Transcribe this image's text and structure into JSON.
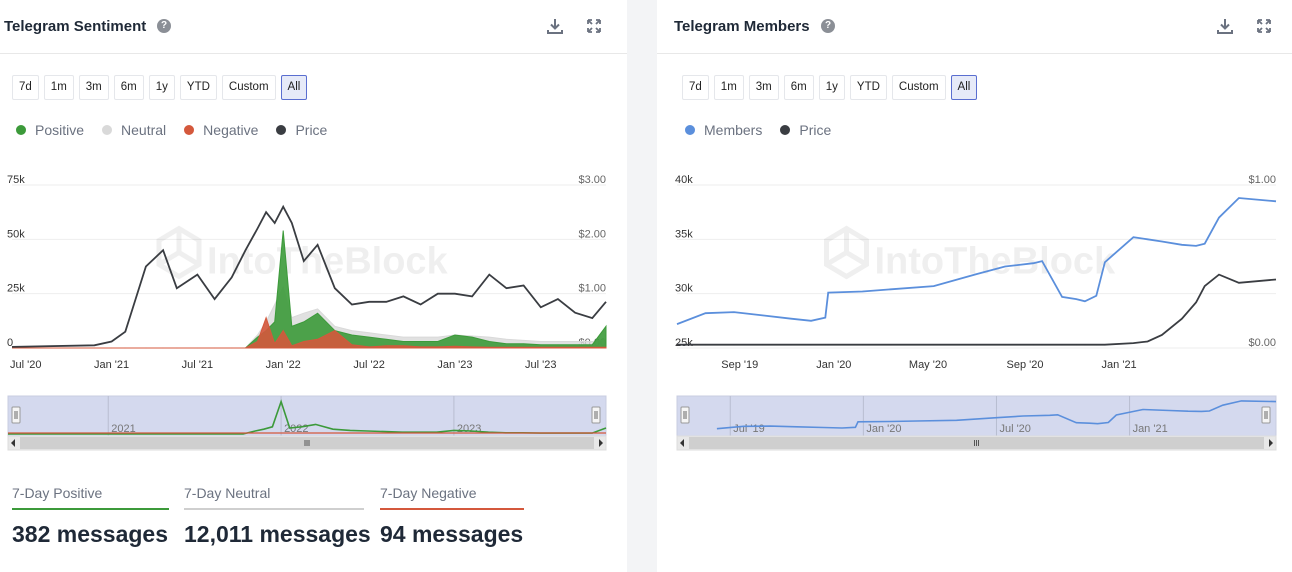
{
  "panels": [
    {
      "title": "Telegram Sentiment",
      "ranges": [
        "7d",
        "1m",
        "3m",
        "6m",
        "1y",
        "YTD",
        "Custom",
        "All"
      ],
      "active_range": "All",
      "legend": [
        {
          "label": "Positive",
          "color": "#3c9a3a"
        },
        {
          "label": "Neutral",
          "color": "#d9d9d9"
        },
        {
          "label": "Negative",
          "color": "#d4583c"
        },
        {
          "label": "Price",
          "color": "#3a3d42"
        }
      ]
    },
    {
      "title": "Telegram Members",
      "ranges": [
        "7d",
        "1m",
        "3m",
        "6m",
        "1y",
        "YTD",
        "Custom",
        "All"
      ],
      "active_range": "All",
      "legend": [
        {
          "label": "Members",
          "color": "#5b8fdc"
        },
        {
          "label": "Price",
          "color": "#3a3d42"
        }
      ]
    }
  ],
  "stats": [
    {
      "label": "7-Day Positive",
      "value": "382 messages",
      "color": "#3c9a3a"
    },
    {
      "label": "7-Day Neutral",
      "value": "12,011 messages",
      "color": "#cfcfcf"
    },
    {
      "label": "7-Day Negative",
      "value": "94 messages",
      "color": "#d4583c"
    }
  ],
  "watermark": "IntoTheBlock",
  "icons": [
    "help-icon",
    "download-icon",
    "expand-icon"
  ],
  "chart_data": [
    {
      "type": "area",
      "x_ticks": [
        "Jul '20",
        "Jan '21",
        "Jul '21",
        "Jan '22",
        "Jul '22",
        "Jan '23",
        "Jul '23"
      ],
      "y_left_ticks": [
        "0",
        "25k",
        "50k",
        "75k"
      ],
      "y_right_ticks": [
        "$0.00",
        "$1.00",
        "$2.00",
        "$3.00"
      ],
      "ylim_left": [
        0,
        75000
      ],
      "ylim_right": [
        0,
        3.0
      ],
      "navigator_ticks": [
        "2021",
        "2022",
        "2023"
      ],
      "x": [
        2020.42,
        2020.9,
        2021.0,
        2021.08,
        2021.2,
        2021.3,
        2021.38,
        2021.5,
        2021.6,
        2021.7,
        2021.78,
        2021.85,
        2021.9,
        2021.95,
        2022.0,
        2022.05,
        2022.12,
        2022.2,
        2022.3,
        2022.4,
        2022.5,
        2022.6,
        2022.7,
        2022.8,
        2022.9,
        2023.0,
        2023.1,
        2023.2,
        2023.3,
        2023.4,
        2023.5,
        2023.6,
        2023.7,
        2023.8,
        2023.88
      ],
      "series": [
        {
          "name": "Positive",
          "values": [
            0,
            0,
            0,
            0,
            0,
            0,
            0,
            0,
            0,
            0,
            0,
            5000,
            8000,
            12000,
            54000,
            10000,
            12000,
            16000,
            8000,
            6000,
            5000,
            4000,
            3000,
            3000,
            3000,
            6000,
            5000,
            3000,
            2000,
            2000,
            1500,
            1500,
            1500,
            1500,
            10000
          ]
        },
        {
          "name": "Neutral",
          "values": [
            0,
            0,
            0,
            0,
            0,
            0,
            0,
            0,
            0,
            0,
            0,
            6000,
            12000,
            20000,
            28000,
            14000,
            16000,
            18000,
            10000,
            8000,
            7000,
            6000,
            5000,
            5000,
            5000,
            6000,
            5500,
            5000,
            4000,
            3500,
            3000,
            3000,
            3000,
            3000,
            4000
          ]
        },
        {
          "name": "Negative",
          "values": [
            0,
            0,
            0,
            0,
            0,
            0,
            0,
            0,
            0,
            0,
            0,
            3000,
            14000,
            2000,
            8000,
            1000,
            3000,
            4000,
            8000,
            1500,
            500,
            1000,
            1000,
            500,
            500,
            800,
            500,
            300,
            300,
            300,
            300,
            300,
            300,
            300,
            300
          ]
        },
        {
          "name": "Price",
          "values": [
            0.02,
            0.05,
            0.12,
            0.3,
            1.5,
            1.8,
            1.1,
            1.35,
            0.9,
            1.3,
            1.8,
            2.2,
            2.5,
            2.3,
            2.6,
            2.3,
            1.6,
            1.9,
            1.1,
            0.8,
            0.85,
            0.85,
            0.95,
            0.8,
            1.0,
            1.0,
            0.95,
            1.35,
            1.1,
            1.15,
            0.75,
            0.9,
            0.65,
            0.55,
            0.85
          ]
        }
      ]
    },
    {
      "type": "line",
      "x_ticks": [
        "Sep '19",
        "Jan '20",
        "May '20",
        "Sep '20",
        "Jan '21"
      ],
      "y_left_ticks": [
        "25k",
        "30k",
        "35k",
        "40k"
      ],
      "y_right_ticks": [
        "$0.00",
        "$1.00"
      ],
      "ylim_left": [
        25000,
        40000
      ],
      "ylim_right": [
        0,
        1.0
      ],
      "navigator_ticks": [
        "Jul '19",
        "Jan '20",
        "Jul '20",
        "Jan '21"
      ],
      "x": [
        2019.45,
        2019.55,
        2019.65,
        2019.75,
        2019.85,
        2019.92,
        2019.97,
        2019.98,
        2020.1,
        2020.2,
        2020.35,
        2020.5,
        2020.6,
        2020.7,
        2020.73,
        2020.8,
        2020.85,
        2020.88,
        2020.92,
        2020.95,
        2021.05,
        2021.1,
        2021.15,
        2021.22,
        2021.27,
        2021.3,
        2021.35,
        2021.42,
        2021.55
      ],
      "series": [
        {
          "name": "Members",
          "values": [
            27200,
            28200,
            28300,
            28000,
            27700,
            27500,
            27800,
            30100,
            30200,
            30400,
            30700,
            31800,
            32500,
            32800,
            33000,
            29700,
            29500,
            29300,
            29800,
            32900,
            35200,
            35000,
            34800,
            34500,
            34400,
            34600,
            37000,
            38800,
            38500
          ]
        },
        {
          "name": "Price",
          "values": [
            0.02,
            0.02,
            0.02,
            0.02,
            0.02,
            0.02,
            0.02,
            0.02,
            0.02,
            0.02,
            0.02,
            0.02,
            0.02,
            0.02,
            0.02,
            0.02,
            0.02,
            0.02,
            0.02,
            0.02,
            0.03,
            0.04,
            0.08,
            0.18,
            0.28,
            0.38,
            0.45,
            0.4,
            0.42
          ]
        }
      ]
    }
  ]
}
